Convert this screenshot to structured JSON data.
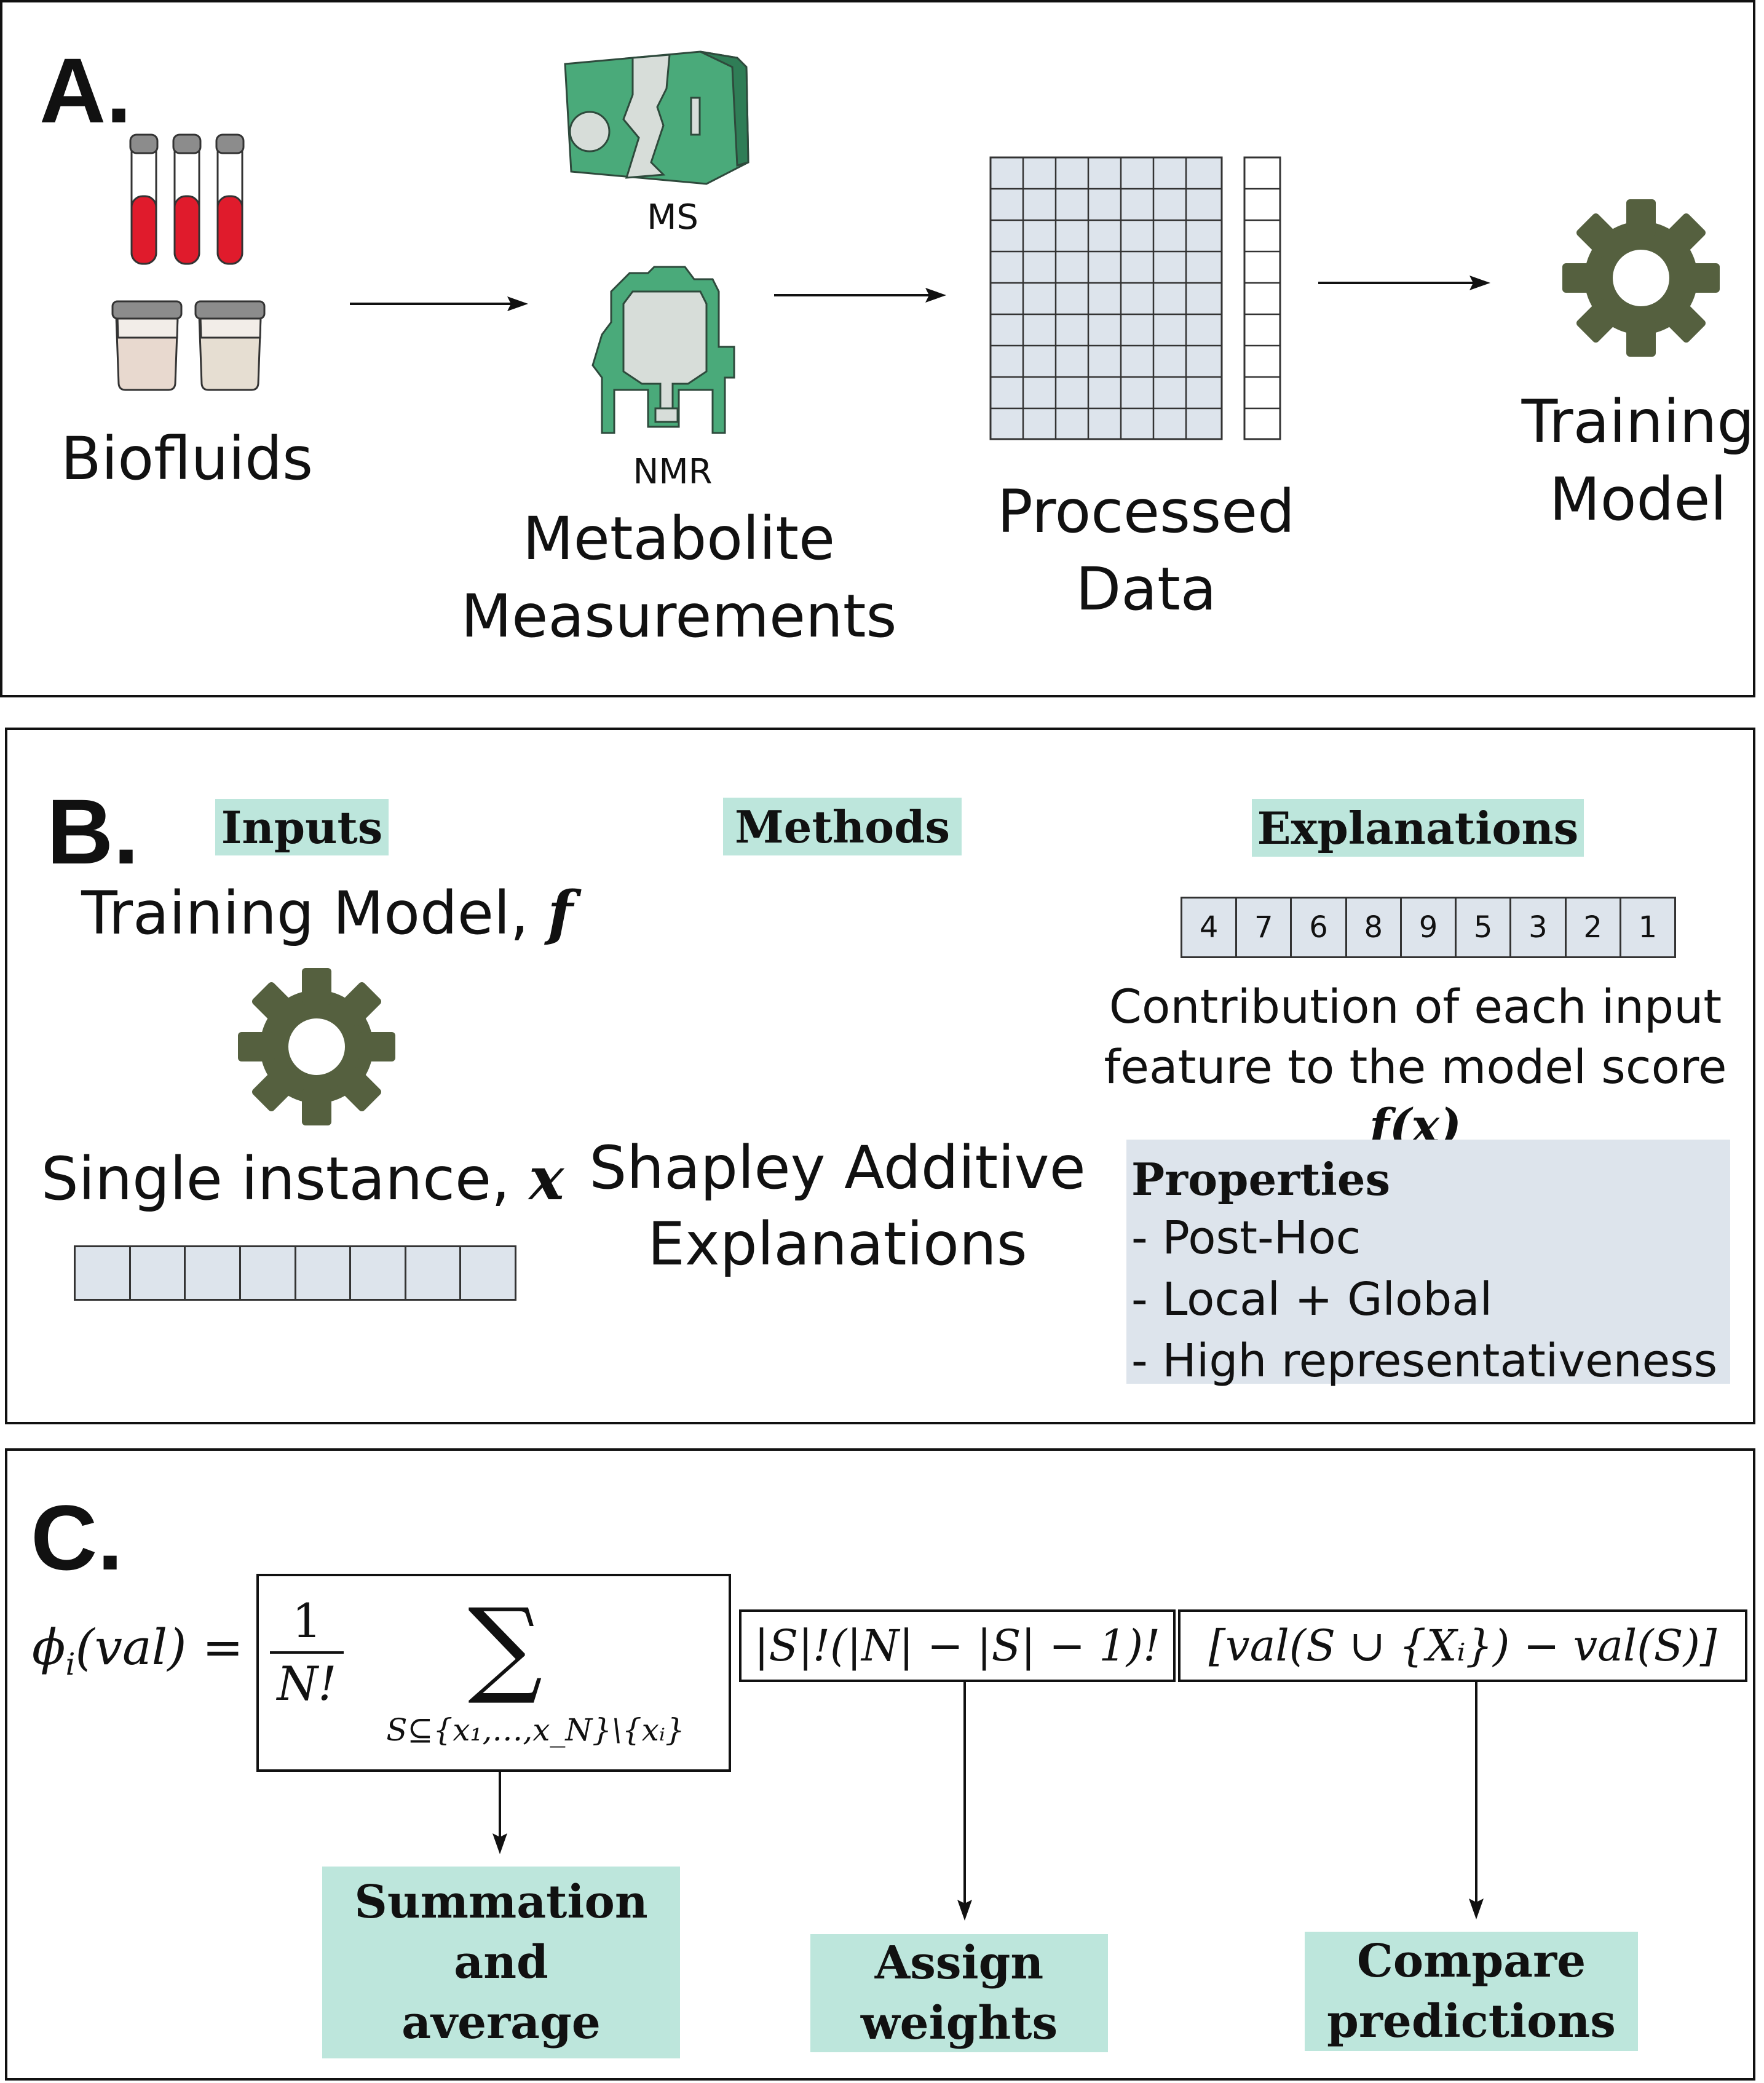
{
  "panel_a": {
    "letter": "A.",
    "biofluids_label": "Biofluids",
    "ms_label": "MS",
    "nmr_label": "NMR",
    "metabolite_label_1": "Metabolite",
    "metabolite_label_2": "Measurements",
    "processed_label_1": "Processed",
    "processed_label_2": "Data",
    "training_label_1": "Training",
    "training_label_2": "Model"
  },
  "panel_b": {
    "letter": "B.",
    "inputs_tag": "Inputs",
    "methods_tag": "Methods",
    "explanations_tag": "Explanations",
    "training_model_text": "Training Model, ",
    "training_model_var": "f",
    "single_instance_text": "Single instance, ",
    "single_instance_var": "x",
    "shap_label_1": "Shapley Additive",
    "shap_label_2": "Explanations",
    "explanation_values": [
      "4",
      "7",
      "6",
      "8",
      "9",
      "5",
      "3",
      "2",
      "1"
    ],
    "contribution_line_1": "Contribution of each input",
    "contribution_line_2": "feature to the model score ",
    "contribution_var": "f(x)",
    "properties_title": "Properties",
    "properties": [
      "- Post-Hoc",
      "- Local + Global",
      "- High representativeness"
    ]
  },
  "panel_c": {
    "letter": "C.",
    "lhs": "ϕ",
    "lhs_sub": "i",
    "lhs_arg": "(val) =",
    "frac_num": "1",
    "frac_den": "N!",
    "sum_symbol": "∑",
    "sum_sub": "S⊆{x₁,…,x_N}\\{xᵢ}",
    "weight_term": "|S|!(|N| − |S| − 1)!",
    "compare_term": "[val(S ∪ {Xᵢ}) − val(S)]",
    "summation_line_1": "Summation",
    "summation_line_2": "and",
    "summation_line_3": "average",
    "assign_line_1": "Assign",
    "assign_line_2": "weights",
    "compare_line_1": "Compare",
    "compare_line_2": "predictions"
  },
  "colors": {
    "instrument_green": "#4aaa7a",
    "gear_green": "#55603f",
    "tag_teal": "#bde6dc",
    "cell_blue": "#dde4ec",
    "blood_red": "#e01b2c"
  },
  "icons": [
    "test-tube-icon",
    "urine-cup-icon",
    "mass-spectrometer-icon",
    "nmr-spectrometer-icon",
    "data-matrix-icon",
    "gear-icon",
    "shap-logo-icon",
    "arrow-icon"
  ]
}
